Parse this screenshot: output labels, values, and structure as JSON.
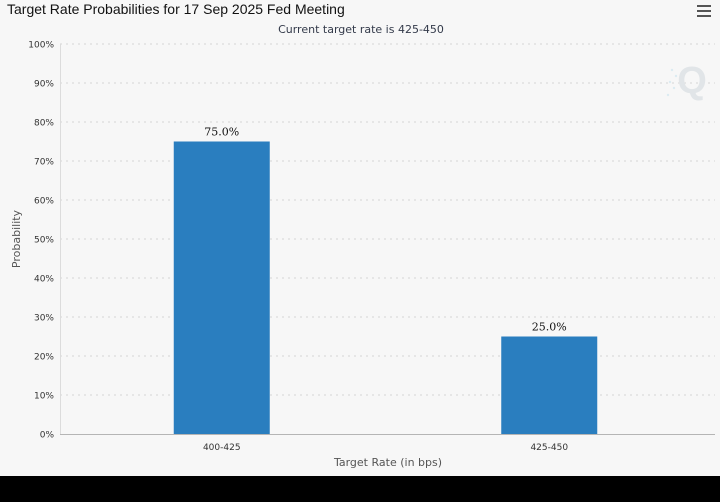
{
  "header": {
    "title": "Target Rate Probabilities for 17 Sep 2025 Fed Meeting",
    "menu_icon": "hamburger-menu-icon"
  },
  "watermark": {
    "icon": "cme-q-logo-icon"
  },
  "colors": {
    "bar": "#2a7ebf",
    "panel_bg": "#f7f7f7",
    "grid": "#d6d6d6",
    "axis_text": "#333333"
  },
  "chart_data": {
    "type": "bar",
    "title": "Target Rate Probabilities for 17 Sep 2025 Fed Meeting",
    "subtitle": "Current target rate is 425-450",
    "categories": [
      "400-425",
      "425-450"
    ],
    "values": [
      75.0,
      25.0
    ],
    "data_labels": [
      "75.0%",
      "25.0%"
    ],
    "xlabel": "Target Rate (in bps)",
    "ylabel": "Probability",
    "ylim": [
      0,
      100
    ],
    "y_ticks": [
      "0%",
      "10%",
      "20%",
      "30%",
      "40%",
      "50%",
      "60%",
      "70%",
      "80%",
      "90%",
      "100%"
    ],
    "grid": "horizontal dotted"
  }
}
